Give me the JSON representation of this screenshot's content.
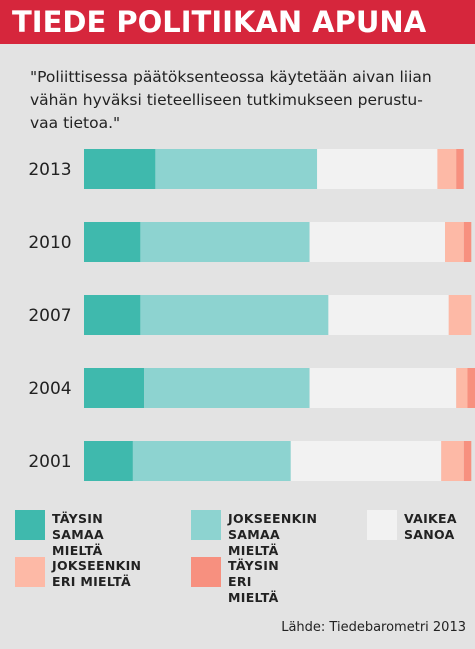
{
  "header": {
    "title": "TIEDE POLITIIKAN APUNA"
  },
  "quote": "\"Poliittisessa päätöksenteossa käytetään aivan liian\nvähän hyväksi tieteelliseen tutkimukseen perustu-\nvaa tietoa.\"",
  "chart_data": {
    "type": "bar",
    "orientation": "horizontal",
    "stacked": true,
    "percent": true,
    "categories": [
      "2013",
      "2010",
      "2007",
      "2004",
      "2001"
    ],
    "series": [
      {
        "name": "TÄYSIN\nSAMAA MIELTÄ",
        "color": "#3fb9ad",
        "values": [
          19,
          15,
          15,
          16,
          13
        ]
      },
      {
        "name": "JOKSEENKIN\nSAMAA MIELTÄ",
        "color": "#8dd3d0",
        "values": [
          43,
          45,
          50,
          44,
          42
        ]
      },
      {
        "name": "VAIKEA\nSANOA",
        "color": "#f2f2f2",
        "values": [
          32,
          36,
          32,
          39,
          40
        ]
      },
      {
        "name": "JOKSEENKIN\nERI MIELTÄ",
        "color": "#fdb9a6",
        "values": [
          5,
          5,
          6,
          3,
          6
        ]
      },
      {
        "name": "TÄYSIN\nERI MIELTÄ",
        "color": "#f7907f",
        "values": [
          2,
          2,
          0,
          2,
          2
        ]
      }
    ],
    "xlim": [
      0,
      100
    ]
  },
  "source": "Lähde: Tiedebarometri 2013"
}
